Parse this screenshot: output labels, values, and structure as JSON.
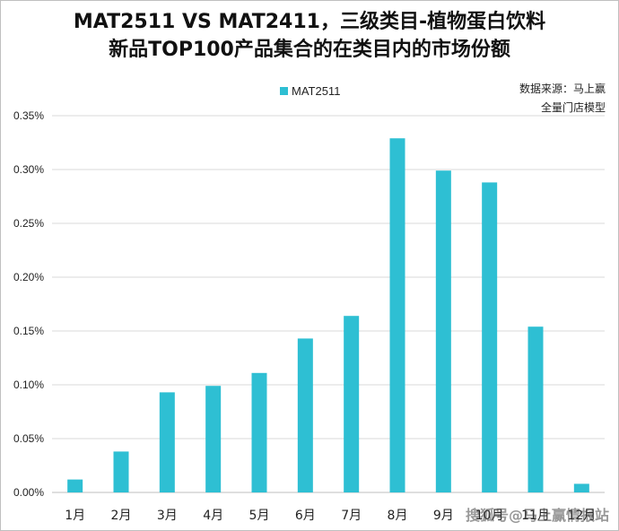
{
  "chart_data": {
    "type": "bar",
    "title": "MAT2511 VS MAT2411，三级类目-植物蛋白饮料\n新品TOP100产品集合的在类目内的市场份额",
    "title_lines": [
      "MAT2511 VS MAT2411，三级类目-植物蛋白饮料",
      "新品TOP100产品集合的在类目内的市场份额"
    ],
    "source_lines": [
      "数据来源：马上赢",
      "全量门店模型"
    ],
    "categories": [
      "1月",
      "2月",
      "3月",
      "4月",
      "5月",
      "6月",
      "7月",
      "8月",
      "9月",
      "10月",
      "11月",
      "12月"
    ],
    "series": [
      {
        "name": "MAT2511",
        "color": "#2ebfd3",
        "values": [
          0.012,
          0.038,
          0.093,
          0.099,
          0.111,
          0.143,
          0.164,
          0.329,
          0.299,
          0.288,
          0.154,
          0.008
        ]
      }
    ],
    "y_ticks": [
      "0.00%",
      "0.05%",
      "0.10%",
      "0.15%",
      "0.20%",
      "0.25%",
      "0.30%",
      "0.35%"
    ],
    "ylim": [
      0,
      0.35
    ],
    "y_unit": "%",
    "grid": true,
    "legend_position": "top"
  },
  "watermark": "搜狐号@马上赢情报站"
}
